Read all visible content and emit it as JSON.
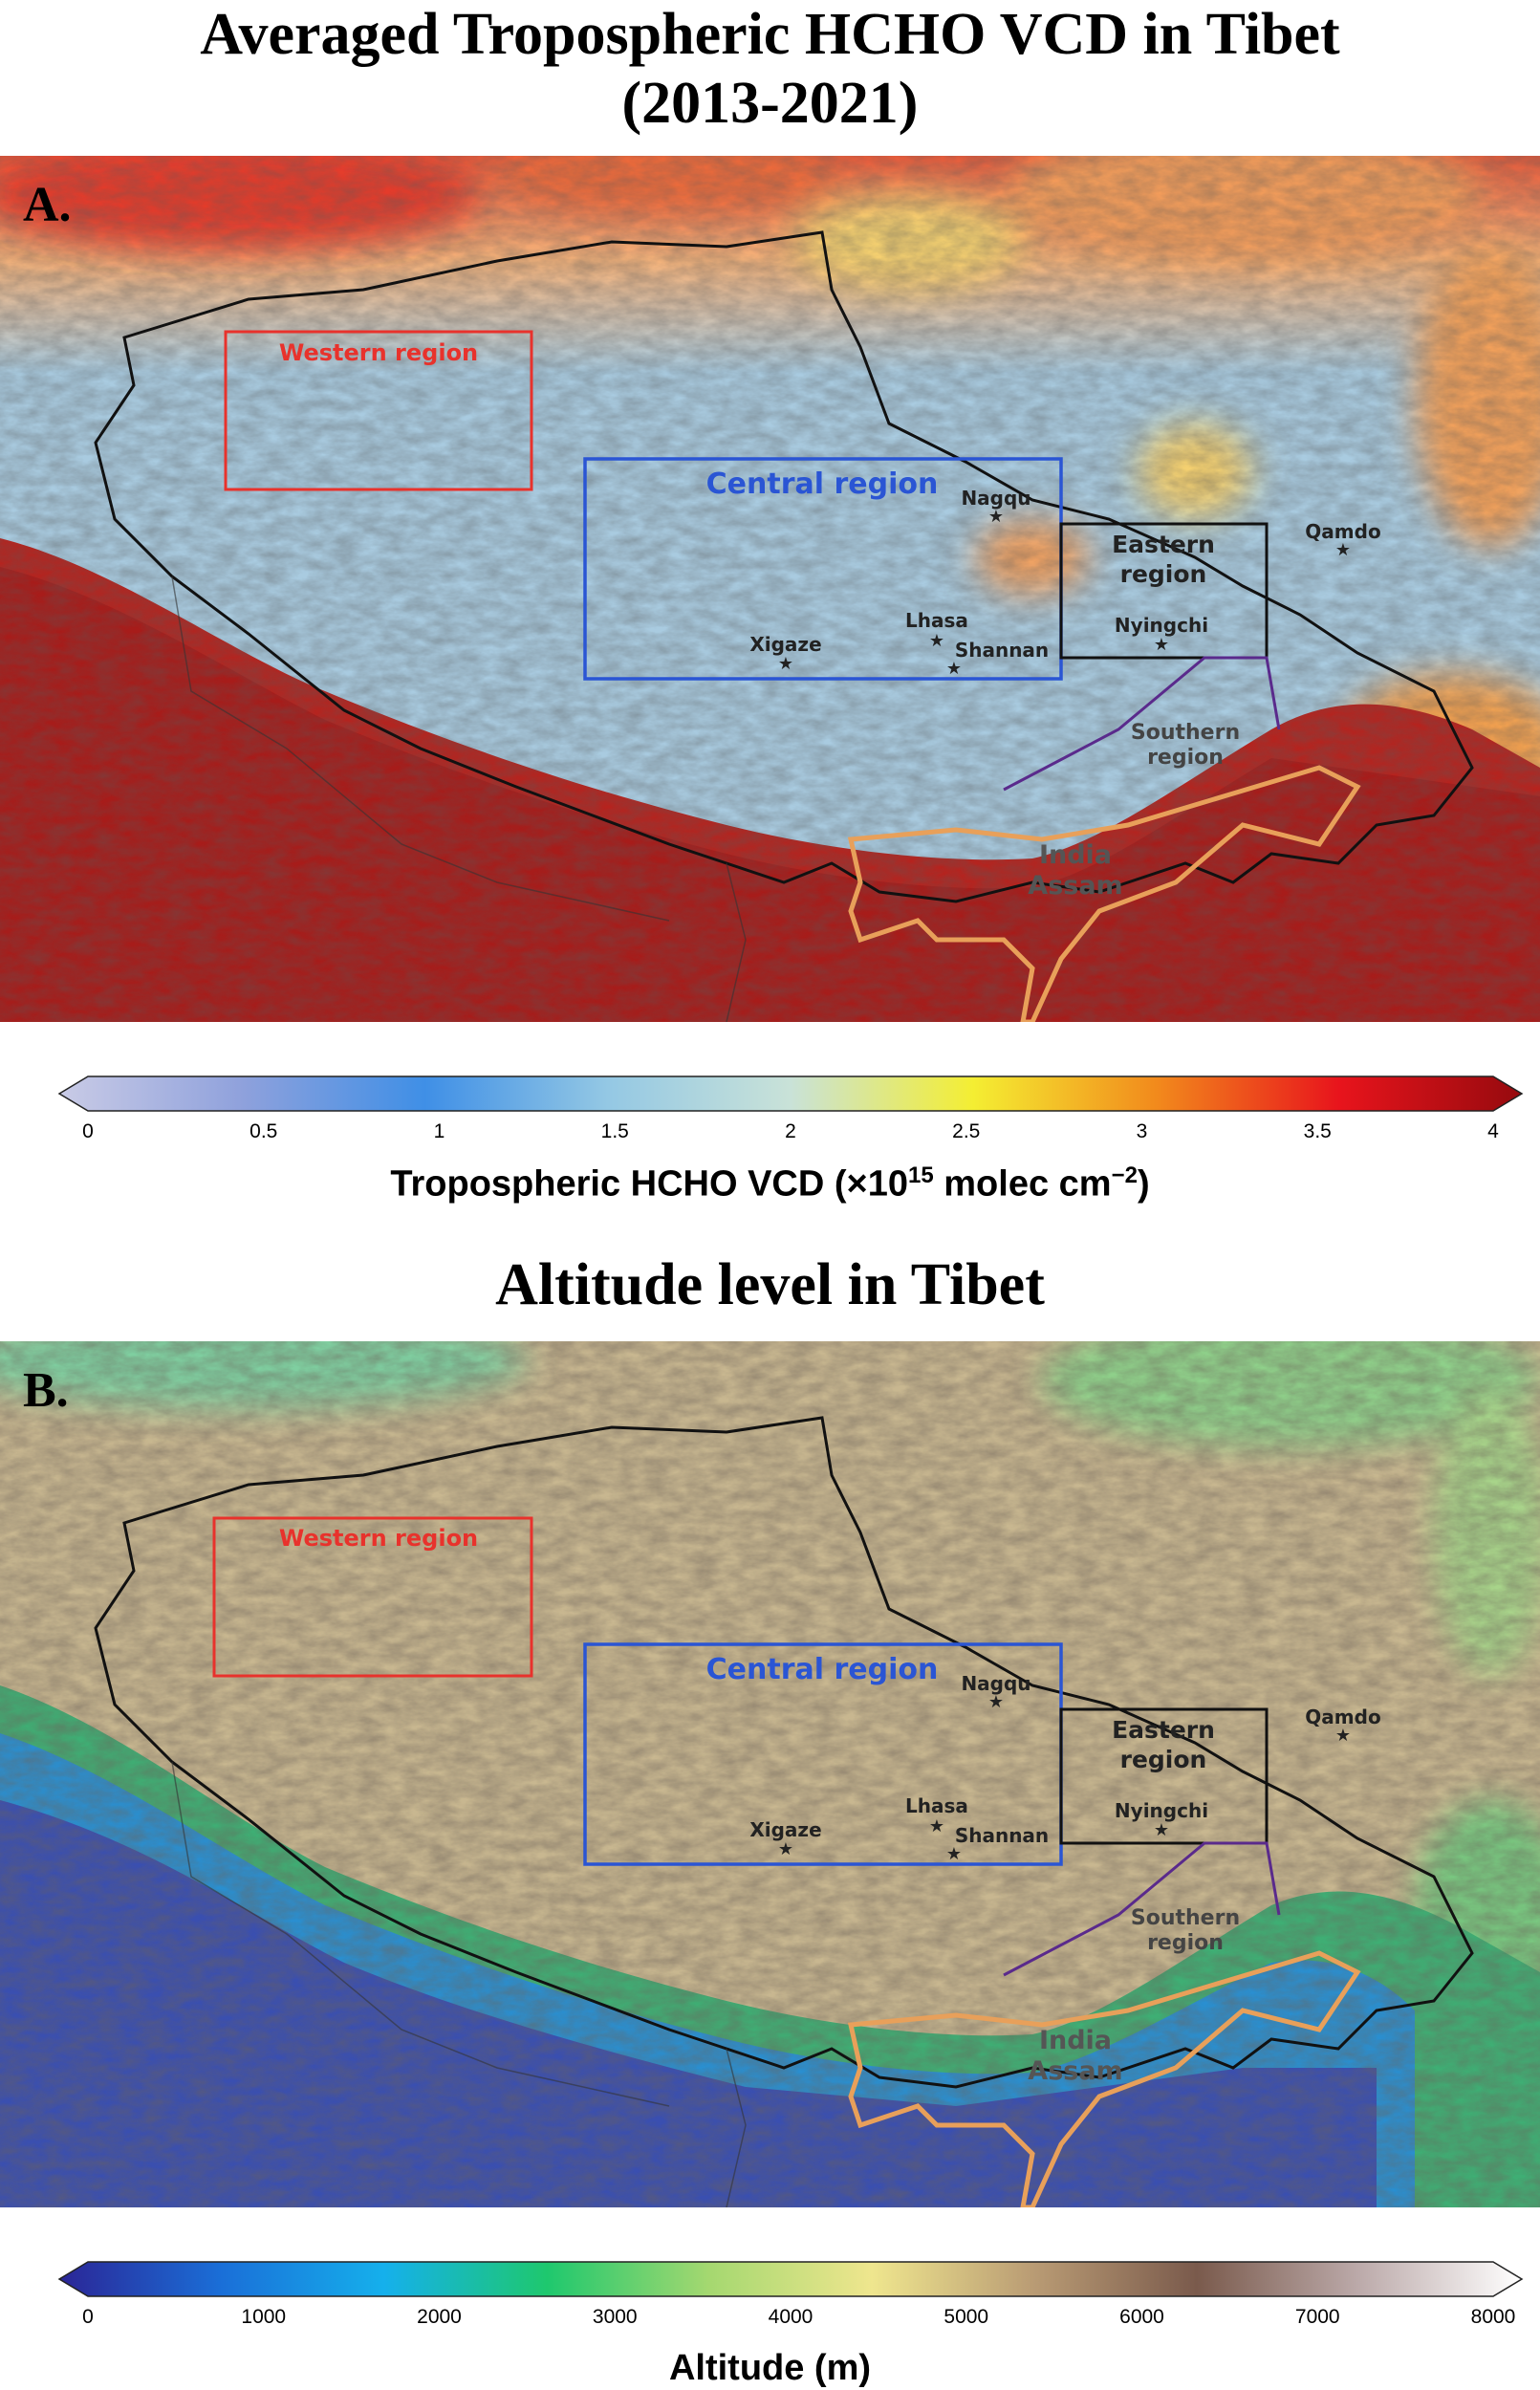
{
  "panel_a": {
    "title_line1": "Averaged Tropospheric HCHO VCD in Tibet",
    "title_line2": "(2013-2021)",
    "label": "A.",
    "colorbar": {
      "title_prefix": "Tropospheric HCHO VCD (×10",
      "title_exp": "15",
      "title_mid": " molec cm",
      "title_exp2": "−2",
      "title_suffix": ")",
      "ticks": [
        "0",
        "0.5",
        "1",
        "1.5",
        "2",
        "2.5",
        "3",
        "3.5",
        "4"
      ],
      "colors": [
        "#c9cbe6",
        "#8fa1dc",
        "#3f8fe6",
        "#94c8e4",
        "#c9e2d8",
        "#f4ee32",
        "#f28a1c",
        "#e8141c",
        "#960a0e"
      ],
      "range": [
        0,
        4
      ]
    }
  },
  "panel_b": {
    "title": "Altitude level in Tibet",
    "label": "B.",
    "colorbar": {
      "title": "Altitude (m)",
      "ticks": [
        "0",
        "1000",
        "2000",
        "3000",
        "4000",
        "5000",
        "6000",
        "7000",
        "8000"
      ],
      "colors": [
        "#2b2596",
        "#1a6fd8",
        "#15b0ec",
        "#1ec86e",
        "#a5d870",
        "#efe68e",
        "#b99b74",
        "#7a5a4c",
        "#bcaaaa",
        "#ffffff"
      ],
      "range": [
        0,
        8000
      ]
    }
  },
  "regions": {
    "western": "Western region",
    "central": "Central region",
    "eastern_line1": "Eastern",
    "eastern_line2": "region",
    "southern_line1": "Southern",
    "southern_line2": "region",
    "india_line1": "India",
    "india_line2": "Assam"
  },
  "cities": {
    "nagqu": "Nagqu",
    "qamdo": "Qamdo",
    "lhasa": "Lhasa",
    "shannan": "Shannan",
    "xigaze": "Xigaze",
    "nyingchi": "Nyingchi"
  },
  "colors": {
    "western_box": "#e8322c",
    "central_box": "#2a55d4",
    "eastern_box": "#111111",
    "southern_box": "#5a2a8c",
    "assam_outline": "#e8a05a"
  }
}
